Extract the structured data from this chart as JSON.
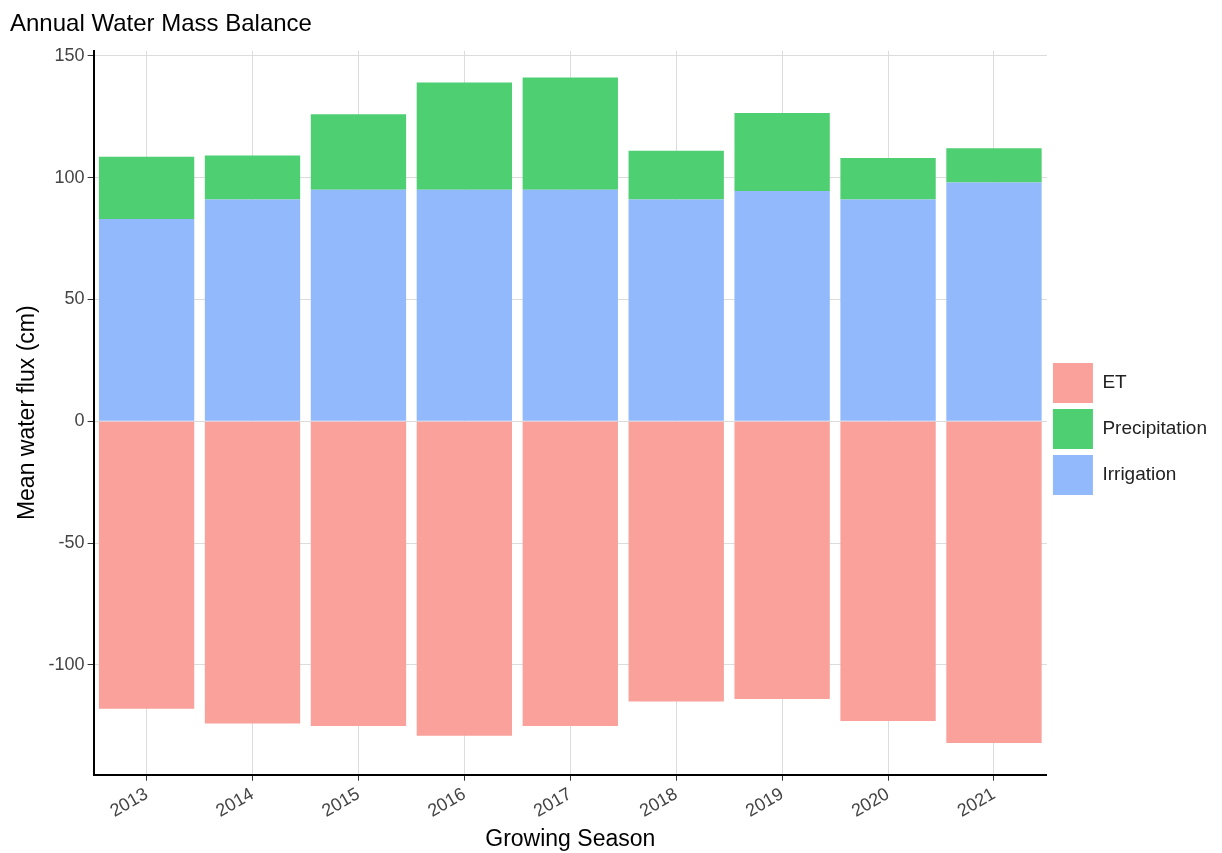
{
  "chart_data": {
    "type": "bar",
    "title": "Annual Water Mass Balance",
    "xlabel": "Growing Season",
    "ylabel": "Mean water flux (cm)",
    "categories": [
      "2013",
      "2014",
      "2015",
      "2016",
      "2017",
      "2018",
      "2019",
      "2020",
      "2021"
    ],
    "stacked": true,
    "series": [
      {
        "name": "Irrigation",
        "color": "#91b9fc",
        "values": [
          83,
          91,
          95,
          95,
          95,
          91,
          94.5,
          91,
          98
        ]
      },
      {
        "name": "Precipitation",
        "color": "#4dcf72",
        "values": [
          25.5,
          18,
          31,
          44,
          46,
          20,
          32,
          17,
          14
        ]
      },
      {
        "name": "ET",
        "color": "#f9a19a",
        "values": [
          -118,
          -124,
          -125,
          -129,
          -125,
          -115,
          -114,
          -123,
          -132
        ]
      }
    ],
    "ylim": [
      -145,
      152
    ],
    "yticks": [
      -100,
      -50,
      0,
      50,
      100,
      150
    ],
    "grid": true,
    "legend": "right"
  }
}
